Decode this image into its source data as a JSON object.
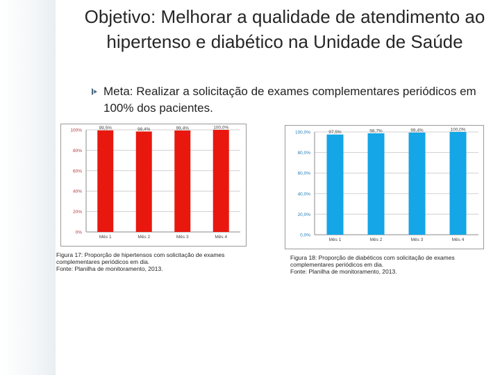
{
  "slide": {
    "title_lead": "Objetivo:",
    "title_rest": " Melhorar a qualidade de atendimento ao hipertenso e diabético na Unidade de Saúde",
    "bullet": "Meta: Realizar a solicitação de exames complementares periódicos em 100% dos pacientes."
  },
  "captions": [
    "Figura 17: Proporção de hipertensos com solicitação de exames complementares periódicos em dia.\nFonte: Planilha de monitoramento, 2013.",
    "Figura 18: Proporção de diabéticos com solicitação de exames complementares periódicos em dia.\nFonte: Planilha de monitoramento, 2013."
  ],
  "chart_data": [
    {
      "type": "bar",
      "categories": [
        "Mês 1",
        "Mês 2",
        "Mês 3",
        "Mês 4"
      ],
      "values": [
        99.5,
        98.4,
        99.4,
        100.0
      ],
      "data_labels": [
        "99,5%",
        "98,4%",
        "99,4%",
        "100,0%"
      ],
      "y_ticks": [
        "0%",
        "20%",
        "40%",
        "60%",
        "80%",
        "100%"
      ],
      "ylim": [
        0,
        100
      ],
      "grid": true,
      "bar_color": "#e8180f"
    },
    {
      "type": "bar",
      "categories": [
        "Mês 1",
        "Mês 2",
        "Mês 3",
        "Mês 4"
      ],
      "values": [
        97.5,
        98.7,
        99.4,
        100.0
      ],
      "data_labels": [
        "97,5%",
        "98,7%",
        "99,4%",
        "100,0%"
      ],
      "y_ticks": [
        "0,0%",
        "20,0%",
        "40,0%",
        "60,0%",
        "80,0%",
        "100,0%"
      ],
      "ylim": [
        0,
        100
      ],
      "grid": true,
      "bar_color": "#14a6e6"
    }
  ]
}
